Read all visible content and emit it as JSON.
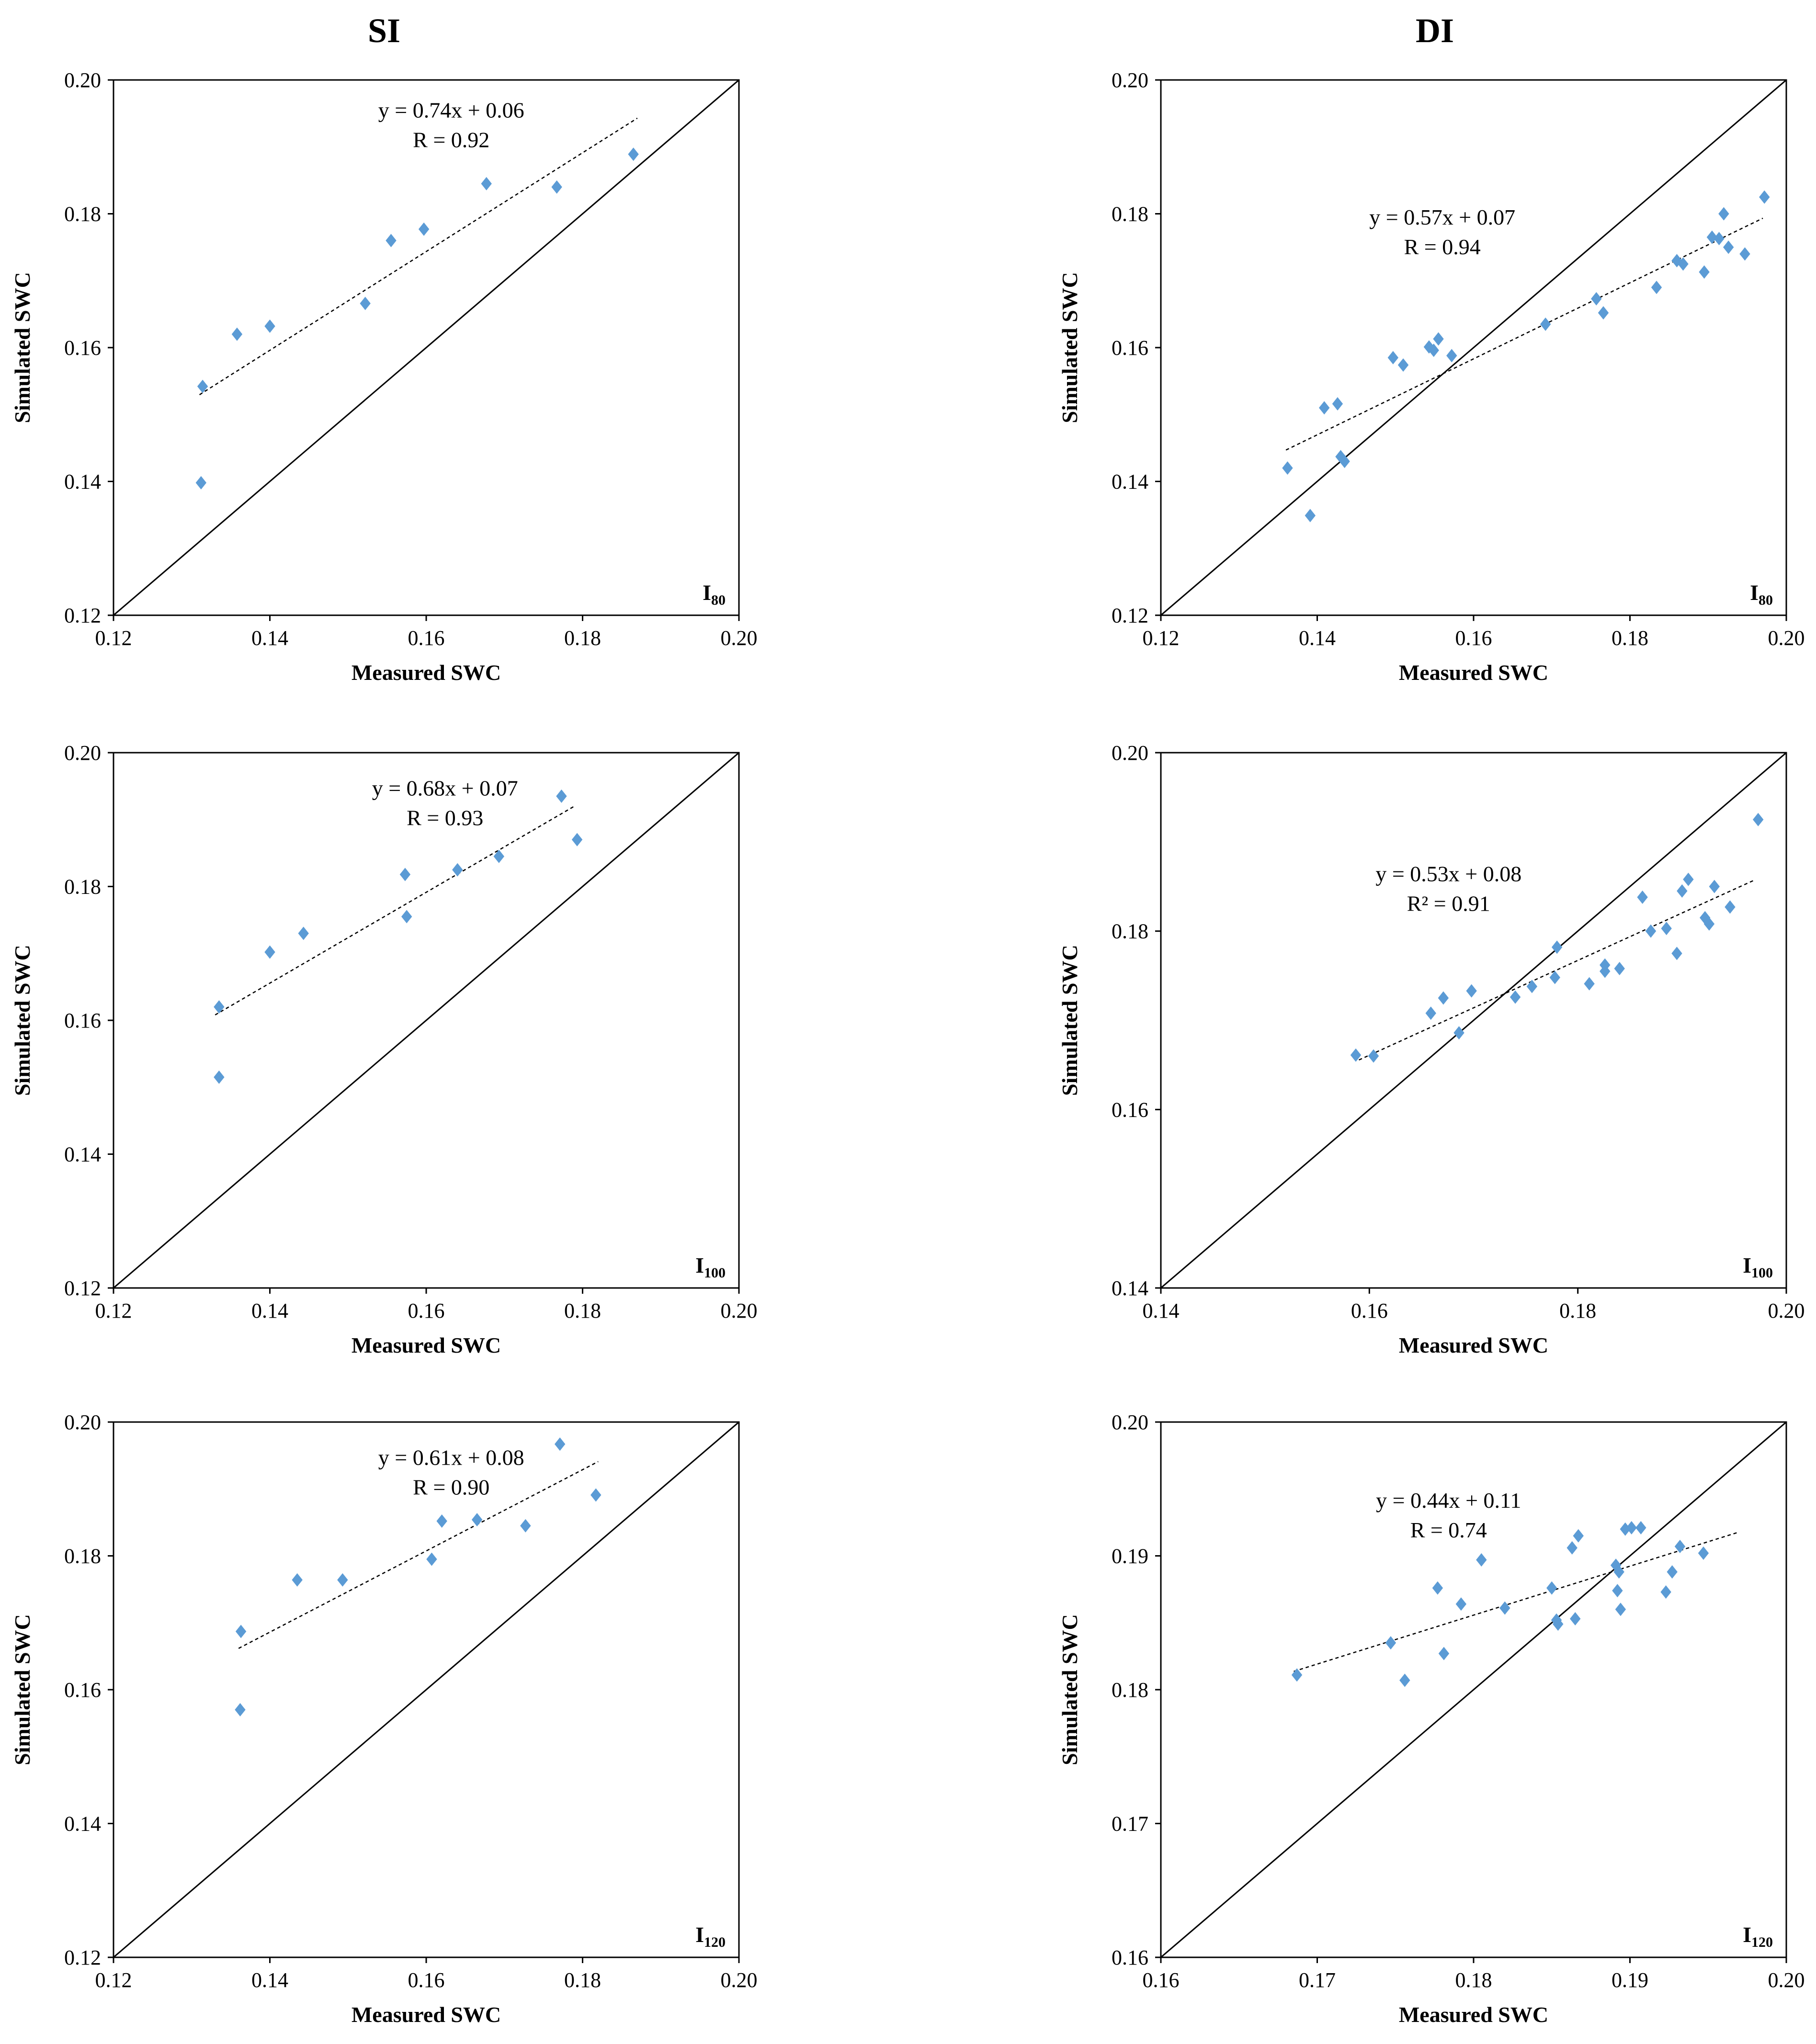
{
  "column_headers": [
    "SI",
    "DI"
  ],
  "colors": {
    "marker": "#5B9BD5",
    "line": "#000000",
    "trend": "#000000"
  },
  "chart_data": [
    {
      "type": "scatter",
      "title": "",
      "xlabel": "Measured SWC",
      "ylabel": "Simulated SWC",
      "xlim": [
        0.12,
        0.2
      ],
      "ylim": [
        0.12,
        0.2
      ],
      "xticks": [
        "0.12",
        "0.14",
        "0.16",
        "0.18",
        "0.20"
      ],
      "yticks": [
        "0.12",
        "0.14",
        "0.16",
        "0.18",
        "0.20"
      ],
      "panel_label": "I",
      "panel_label_sub": "80",
      "equation": "y = 0.74x + 0.06",
      "stat": "R = 0.92",
      "trend_x": [
        0.131,
        0.187
      ],
      "series": [
        {
          "name": "observations",
          "x": [
            0.1312,
            0.1314,
            0.1358,
            0.14,
            0.1522,
            0.1555,
            0.1597,
            0.1677,
            0.1767,
            0.1865
          ],
          "y": [
            0.1398,
            0.1542,
            0.162,
            0.1632,
            0.1666,
            0.176,
            0.1777,
            0.1845,
            0.184,
            0.1889
          ]
        }
      ]
    },
    {
      "type": "scatter",
      "title": "",
      "xlabel": "Measured SWC",
      "ylabel": "Simulated SWC",
      "xlim": [
        0.12,
        0.2
      ],
      "ylim": [
        0.12,
        0.2
      ],
      "xticks": [
        "0.12",
        "0.14",
        "0.16",
        "0.18",
        "0.20"
      ],
      "yticks": [
        "0.12",
        "0.14",
        "0.16",
        "0.18",
        "0.20"
      ],
      "panel_label": "I",
      "panel_label_sub": "80",
      "equation": "y = 0.57x + 0.07",
      "stat": "R = 0.94",
      "trend_x": [
        0.136,
        0.197
      ],
      "series": [
        {
          "name": "observations",
          "x": [
            0.1362,
            0.1391,
            0.1409,
            0.1426,
            0.143,
            0.1435,
            0.1497,
            0.151,
            0.1543,
            0.1549,
            0.1555,
            0.1572,
            0.1692,
            0.1757,
            0.1766,
            0.1834,
            0.186,
            0.1868,
            0.1895,
            0.1905,
            0.1914,
            0.192,
            0.1926,
            0.1947,
            0.1972
          ],
          "y": [
            0.142,
            0.1349,
            0.151,
            0.1516,
            0.1437,
            0.143,
            0.1585,
            0.1574,
            0.1601,
            0.1596,
            0.1613,
            0.1588,
            0.1635,
            0.1673,
            0.1652,
            0.169,
            0.173,
            0.1725,
            0.1713,
            0.1765,
            0.1763,
            0.18,
            0.175,
            0.174,
            0.1825
          ]
        }
      ]
    },
    {
      "type": "scatter",
      "title": "",
      "xlabel": "Measured SWC",
      "ylabel": "Simulated SWC",
      "xlim": [
        0.12,
        0.2
      ],
      "ylim": [
        0.12,
        0.2
      ],
      "xticks": [
        "0.12",
        "0.14",
        "0.16",
        "0.18",
        "0.20"
      ],
      "yticks": [
        "0.12",
        "0.14",
        "0.16",
        "0.18",
        "0.20"
      ],
      "panel_label": "I",
      "panel_label_sub": "100",
      "equation": "y = 0.68x + 0.07",
      "stat": "R = 0.93",
      "trend_x": [
        0.133,
        0.179
      ],
      "series": [
        {
          "name": "observations",
          "x": [
            0.1335,
            0.1335,
            0.14,
            0.1443,
            0.1573,
            0.1575,
            0.164,
            0.1693,
            0.1773,
            0.1793
          ],
          "y": [
            0.1515,
            0.162,
            0.1702,
            0.173,
            0.1818,
            0.1755,
            0.1825,
            0.1845,
            0.1935,
            0.187
          ]
        }
      ]
    },
    {
      "type": "scatter",
      "title": "",
      "xlabel": "Measured SWC",
      "ylabel": "Simulated SWC",
      "xlim": [
        0.14,
        0.2
      ],
      "ylim": [
        0.14,
        0.2
      ],
      "xticks": [
        "0.14",
        "0.16",
        "0.18",
        "0.20"
      ],
      "yticks": [
        "0.14",
        "0.16",
        "0.18",
        "0.20"
      ],
      "panel_label": "I",
      "panel_label_sub": "100",
      "equation": "y = 0.53x + 0.08",
      "stat": "R² = 0.91",
      "trend_x": [
        0.159,
        0.197
      ],
      "series": [
        {
          "name": "observations",
          "x": [
            0.1587,
            0.1604,
            0.1659,
            0.1671,
            0.1686,
            0.1698,
            0.174,
            0.1756,
            0.1778,
            0.178,
            0.1811,
            0.1826,
            0.1826,
            0.184,
            0.1862,
            0.187,
            0.1885,
            0.1895,
            0.19,
            0.1906,
            0.1922,
            0.1926,
            0.1931,
            0.1946,
            0.1973
          ],
          "y": [
            0.1661,
            0.166,
            0.1708,
            0.1725,
            0.1686,
            0.1733,
            0.1726,
            0.1738,
            0.1748,
            0.1782,
            0.1741,
            0.1755,
            0.1762,
            0.1758,
            0.1838,
            0.18,
            0.1803,
            0.1775,
            0.1845,
            0.1858,
            0.1815,
            0.1808,
            0.185,
            0.1827,
            0.1925
          ]
        }
      ]
    },
    {
      "type": "scatter",
      "title": "",
      "xlabel": "Measured SWC",
      "ylabel": "Simulated SWC",
      "xlim": [
        0.12,
        0.2
      ],
      "ylim": [
        0.12,
        0.2
      ],
      "xticks": [
        "0.12",
        "0.14",
        "0.16",
        "0.18",
        "0.20"
      ],
      "yticks": [
        "0.12",
        "0.14",
        "0.16",
        "0.18",
        "0.20"
      ],
      "panel_label": "I",
      "panel_label_sub": "120",
      "equation": "y = 0.61x + 0.08",
      "stat": "R = 0.90",
      "trend_x": [
        0.136,
        0.182
      ],
      "series": [
        {
          "name": "observations",
          "x": [
            0.1362,
            0.1363,
            0.1435,
            0.1493,
            0.1607,
            0.162,
            0.1665,
            0.1727,
            0.1771,
            0.1817
          ],
          "y": [
            0.157,
            0.1687,
            0.1764,
            0.1764,
            0.1795,
            0.1852,
            0.1854,
            0.1845,
            0.1967,
            0.1891
          ]
        }
      ]
    },
    {
      "type": "scatter",
      "title": "",
      "xlabel": "Measured SWC",
      "ylabel": "Simulated SWC",
      "xlim": [
        0.16,
        0.2
      ],
      "ylim": [
        0.16,
        0.2
      ],
      "xticks": [
        "0.16",
        "0.17",
        "0.18",
        "0.19",
        "0.20"
      ],
      "yticks": [
        "0.16",
        "0.17",
        "0.18",
        "0.19",
        "0.20"
      ],
      "panel_label": "I",
      "panel_label_sub": "120",
      "equation": "y = 0.44x + 0.11",
      "stat": "R = 0.74",
      "trend_x": [
        0.1685,
        0.197
      ],
      "series": [
        {
          "name": "observations",
          "x": [
            0.1687,
            0.1747,
            0.1756,
            0.1777,
            0.1781,
            0.1792,
            0.1805,
            0.182,
            0.185,
            0.1853,
            0.1854,
            0.1863,
            0.1865,
            0.1867,
            0.1891,
            0.1892,
            0.1893,
            0.1894,
            0.1897,
            0.1901,
            0.1907,
            0.1923,
            0.1927,
            0.1932,
            0.1947
          ],
          "y": [
            0.1811,
            0.1835,
            0.1807,
            0.1876,
            0.1827,
            0.1864,
            0.1897,
            0.1861,
            0.1876,
            0.1852,
            0.1849,
            0.1906,
            0.1853,
            0.1915,
            0.1893,
            0.1874,
            0.1888,
            0.186,
            0.192,
            0.1921,
            0.1921,
            0.1873,
            0.1888,
            0.1907,
            0.1902
          ]
        }
      ]
    }
  ]
}
